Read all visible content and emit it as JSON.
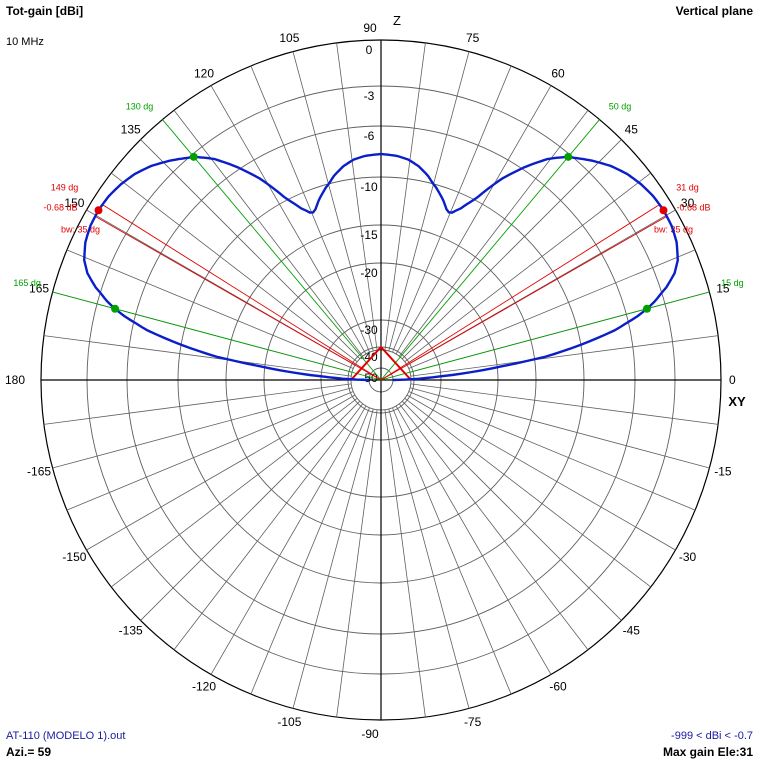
{
  "header": {
    "title": "Tot-gain [dBi]",
    "frequency": "10 MHz",
    "plane": "Vertical plane"
  },
  "footer": {
    "file": "AT-110 (MODELO 1).out",
    "azimuth": "Azi.= 59",
    "range": "-999 < dBi < -0.7",
    "max_gain": "Max gain Ele:31"
  },
  "axes": {
    "z_label": "Z",
    "xy_label": "XY"
  },
  "colors": {
    "pattern": "#0a1fc8",
    "green": "#00a000",
    "red": "#e00000",
    "grid": "#606060"
  },
  "chart_data": {
    "type": "polar",
    "subtype": "elevation-pattern",
    "angle_unit": "deg",
    "angle_ticks": [
      0,
      15,
      30,
      45,
      60,
      75,
      90,
      105,
      120,
      135,
      150,
      165,
      180,
      -165,
      -150,
      -135,
      -120,
      -105,
      -90,
      -75,
      -60,
      -45,
      -30,
      -15
    ],
    "radial_ticks": [
      0,
      -3,
      -6,
      -10,
      -15,
      -20,
      -30,
      -40,
      -50
    ],
    "pattern": [
      [
        0,
        -50
      ],
      [
        2,
        -38
      ],
      [
        4,
        -28
      ],
      [
        6,
        -21
      ],
      [
        8,
        -14
      ],
      [
        10,
        -10
      ],
      [
        12,
        -7.2
      ],
      [
        14,
        -5.2
      ],
      [
        15,
        -4.4
      ],
      [
        16,
        -3.7
      ],
      [
        18,
        -2.6
      ],
      [
        20,
        -1.8
      ],
      [
        22,
        -1.3
      ],
      [
        25,
        -0.9
      ],
      [
        28,
        -0.72
      ],
      [
        31,
        -0.68
      ],
      [
        34,
        -0.75
      ],
      [
        37,
        -0.95
      ],
      [
        40,
        -1.25
      ],
      [
        43,
        -1.7
      ],
      [
        46,
        -2.3
      ],
      [
        50,
        -3.2
      ],
      [
        53,
        -4.3
      ],
      [
        56,
        -5.8
      ],
      [
        59,
        -7.5
      ],
      [
        62,
        -9.6
      ],
      [
        65,
        -11.4
      ],
      [
        67,
        -12.2
      ],
      [
        68,
        -12.3
      ],
      [
        69,
        -12.1
      ],
      [
        71,
        -11.3
      ],
      [
        74,
        -10.3
      ],
      [
        77,
        -9.5
      ],
      [
        80,
        -8.9
      ],
      [
        83,
        -8.5
      ],
      [
        86,
        -8.3
      ],
      [
        90,
        -8.2
      ],
      [
        94,
        -8.3
      ],
      [
        97,
        -8.5
      ],
      [
        100,
        -8.9
      ],
      [
        103,
        -9.5
      ],
      [
        106,
        -10.3
      ],
      [
        109,
        -11.3
      ],
      [
        111,
        -12.1
      ],
      [
        112,
        -12.3
      ],
      [
        113,
        -12.2
      ],
      [
        115,
        -11.4
      ],
      [
        118,
        -9.6
      ],
      [
        121,
        -7.5
      ],
      [
        124,
        -5.8
      ],
      [
        127,
        -4.3
      ],
      [
        130,
        -3.2
      ],
      [
        134,
        -2.3
      ],
      [
        137,
        -1.7
      ],
      [
        140,
        -1.25
      ],
      [
        143,
        -0.95
      ],
      [
        146,
        -0.75
      ],
      [
        149,
        -0.68
      ],
      [
        152,
        -0.72
      ],
      [
        155,
        -0.9
      ],
      [
        158,
        -1.3
      ],
      [
        160,
        -1.8
      ],
      [
        162,
        -2.6
      ],
      [
        164,
        -3.7
      ],
      [
        165,
        -4.4
      ],
      [
        166,
        -5.2
      ],
      [
        168,
        -7.2
      ],
      [
        170,
        -10
      ],
      [
        172,
        -14
      ],
      [
        174,
        -21
      ],
      [
        176,
        -28
      ],
      [
        178,
        -38
      ],
      [
        180,
        -50
      ]
    ],
    "max_markers": [
      {
        "angle": 31,
        "angle_label": "31 dg",
        "gain_label": "-0.68 dB",
        "bw_label": "bw: 35 dg"
      },
      {
        "angle": 149,
        "angle_label": "149 dg",
        "gain_label": "-0.68 dB",
        "bw_label": "bw: 35 dg"
      }
    ],
    "halfpower_markers": [
      {
        "angle": 15,
        "label": "15 dg"
      },
      {
        "angle": 50,
        "label": "50 dg"
      },
      {
        "angle": 130,
        "label": "130 dg"
      },
      {
        "angle": 165,
        "label": "165 dg"
      }
    ],
    "inner_markers": [
      {
        "angle": 31,
        "gain": -40
      },
      {
        "angle": 149,
        "gain": -40
      }
    ]
  }
}
